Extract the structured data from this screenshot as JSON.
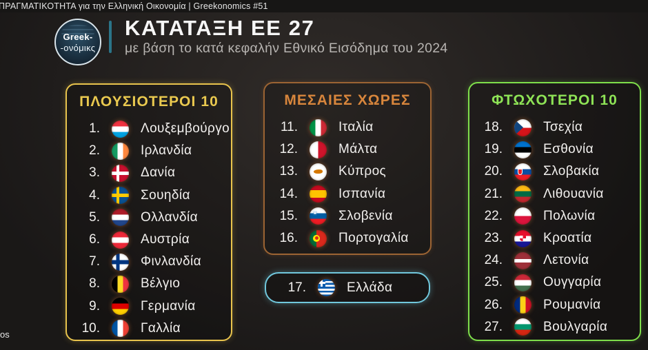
{
  "top_bar": {
    "title": "ΠΡΑΓΜΑΤΙΚΟΤΗΤΑ για την Ελληνική Οικονομία | Greekonomics #51"
  },
  "header": {
    "logo_line1": "Greek-",
    "logo_line2": "-ονόμικς",
    "title": "ΚΑΤΑΤΑΞΗ ΕΕ 27",
    "subtitle": "με βάση το κατά κεφαλήν Εθνικό Εισόδημα του 2024"
  },
  "colors": {
    "rich": "#e9c44d",
    "rich_header": "#eac94f",
    "middle": "#9c6433",
    "middle_header": "#d8863c",
    "greece": "#71c8dd",
    "poor": "#7fdf4b",
    "poor_header": "#8ee356",
    "divider_teal": "#2b7488"
  },
  "panels": {
    "rich": {
      "title": "ΠΛΟΥΣΙΟΤΕΡΟΙ 10",
      "items": [
        {
          "rank": "1.",
          "flag": "luxembourg",
          "name": "Λουξεμβούργο"
        },
        {
          "rank": "2.",
          "flag": "ireland",
          "name": "Ιρλανδία"
        },
        {
          "rank": "3.",
          "flag": "denmark",
          "name": "Δανία"
        },
        {
          "rank": "4.",
          "flag": "sweden",
          "name": "Σουηδία"
        },
        {
          "rank": "5.",
          "flag": "netherlands",
          "name": "Ολλανδία"
        },
        {
          "rank": "6.",
          "flag": "austria",
          "name": "Αυστρία"
        },
        {
          "rank": "7.",
          "flag": "finland",
          "name": "Φινλανδία"
        },
        {
          "rank": "8.",
          "flag": "belgium",
          "name": "Βέλγιο"
        },
        {
          "rank": "9.",
          "flag": "germany",
          "name": "Γερμανία"
        },
        {
          "rank": "10.",
          "flag": "france",
          "name": "Γαλλία"
        }
      ]
    },
    "middle": {
      "title": "ΜΕΣΑΙΕΣ ΧΩΡΕΣ",
      "items": [
        {
          "rank": "11.",
          "flag": "italy",
          "name": "Ιταλία"
        },
        {
          "rank": "12.",
          "flag": "malta",
          "name": "Μάλτα"
        },
        {
          "rank": "13.",
          "flag": "cyprus",
          "name": "Κύπρος"
        },
        {
          "rank": "14.",
          "flag": "spain",
          "name": "Ισπανία"
        },
        {
          "rank": "15.",
          "flag": "slovenia",
          "name": "Σλοβενία"
        },
        {
          "rank": "16.",
          "flag": "portugal",
          "name": "Πορτογαλία"
        }
      ]
    },
    "greece": {
      "items": [
        {
          "rank": "17.",
          "flag": "greece",
          "name": "Ελλάδα"
        }
      ]
    },
    "poor": {
      "title": "ΦΤΩΧΟΤΕΡΟΙ 10",
      "items": [
        {
          "rank": "18.",
          "flag": "czechia",
          "name": "Τσεχία"
        },
        {
          "rank": "19.",
          "flag": "estonia",
          "name": "Εσθονία"
        },
        {
          "rank": "20.",
          "flag": "slovakia",
          "name": "Σλοβακία"
        },
        {
          "rank": "21.",
          "flag": "lithuania",
          "name": "Λιθουανία"
        },
        {
          "rank": "22.",
          "flag": "poland",
          "name": "Πολωνία"
        },
        {
          "rank": "23.",
          "flag": "croatia",
          "name": "Κροατία"
        },
        {
          "rank": "24.",
          "flag": "latvia",
          "name": "Λετονία"
        },
        {
          "rank": "25.",
          "flag": "hungary",
          "name": "Ουγγαρία"
        },
        {
          "rank": "26.",
          "flag": "romania",
          "name": "Ρουμανία"
        },
        {
          "rank": "27.",
          "flag": "bulgaria",
          "name": "Βουλγαρία"
        }
      ]
    }
  },
  "edge_fragment": "os"
}
